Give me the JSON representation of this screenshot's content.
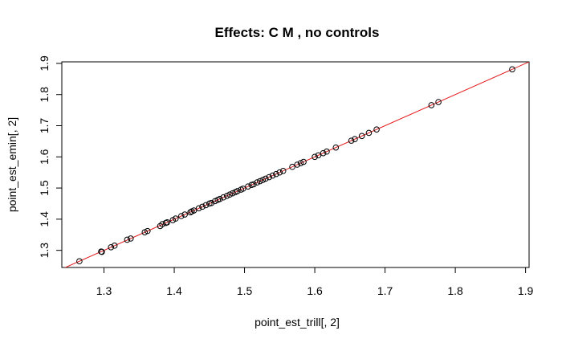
{
  "chart_data": {
    "type": "scatter",
    "title": "Effects: C M  , no controls",
    "xlabel": "point_est_trill[, 2]",
    "ylabel": "point_est_emin[, 2]",
    "xlim": [
      1.24,
      1.905
    ],
    "ylim": [
      1.245,
      1.905
    ],
    "x_ticks": [
      "1.3",
      "1.4",
      "1.5",
      "1.6",
      "1.7",
      "1.8",
      "1.9"
    ],
    "y_ticks": [
      "1.3",
      "1.4",
      "1.5",
      "1.6",
      "1.7",
      "1.8",
      "1.9"
    ],
    "grid": false,
    "reference_line": {
      "intercept": 0,
      "slope": 1,
      "color": "#e31a1c"
    },
    "point_color": "#000000",
    "points": [
      [
        1.265,
        1.265
      ],
      [
        1.296,
        1.296
      ],
      [
        1.297,
        1.295
      ],
      [
        1.31,
        1.31
      ],
      [
        1.315,
        1.315
      ],
      [
        1.333,
        1.334
      ],
      [
        1.338,
        1.338
      ],
      [
        1.358,
        1.358
      ],
      [
        1.362,
        1.362
      ],
      [
        1.38,
        1.378
      ],
      [
        1.383,
        1.384
      ],
      [
        1.388,
        1.388
      ],
      [
        1.39,
        1.39
      ],
      [
        1.398,
        1.397
      ],
      [
        1.402,
        1.402
      ],
      [
        1.41,
        1.41
      ],
      [
        1.415,
        1.415
      ],
      [
        1.423,
        1.422
      ],
      [
        1.425,
        1.425
      ],
      [
        1.428,
        1.428
      ],
      [
        1.435,
        1.435
      ],
      [
        1.44,
        1.44
      ],
      [
        1.445,
        1.445
      ],
      [
        1.45,
        1.45
      ],
      [
        1.453,
        1.452
      ],
      [
        1.458,
        1.458
      ],
      [
        1.462,
        1.462
      ],
      [
        1.465,
        1.465
      ],
      [
        1.47,
        1.47
      ],
      [
        1.475,
        1.475
      ],
      [
        1.479,
        1.479
      ],
      [
        1.483,
        1.483
      ],
      [
        1.487,
        1.487
      ],
      [
        1.49,
        1.49
      ],
      [
        1.495,
        1.495
      ],
      [
        1.498,
        1.498
      ],
      [
        1.505,
        1.505
      ],
      [
        1.51,
        1.51
      ],
      [
        1.513,
        1.512
      ],
      [
        1.518,
        1.518
      ],
      [
        1.522,
        1.522
      ],
      [
        1.526,
        1.526
      ],
      [
        1.53,
        1.53
      ],
      [
        1.535,
        1.535
      ],
      [
        1.54,
        1.54
      ],
      [
        1.545,
        1.545
      ],
      [
        1.55,
        1.55
      ],
      [
        1.555,
        1.555
      ],
      [
        1.568,
        1.568
      ],
      [
        1.575,
        1.575
      ],
      [
        1.58,
        1.58
      ],
      [
        1.584,
        1.584
      ],
      [
        1.6,
        1.6
      ],
      [
        1.605,
        1.605
      ],
      [
        1.612,
        1.612
      ],
      [
        1.617,
        1.617
      ],
      [
        1.63,
        1.63
      ],
      [
        1.652,
        1.652
      ],
      [
        1.657,
        1.657
      ],
      [
        1.667,
        1.667
      ],
      [
        1.677,
        1.677
      ],
      [
        1.688,
        1.688
      ],
      [
        1.766,
        1.766
      ],
      [
        1.776,
        1.776
      ],
      [
        1.881,
        1.881
      ]
    ]
  }
}
